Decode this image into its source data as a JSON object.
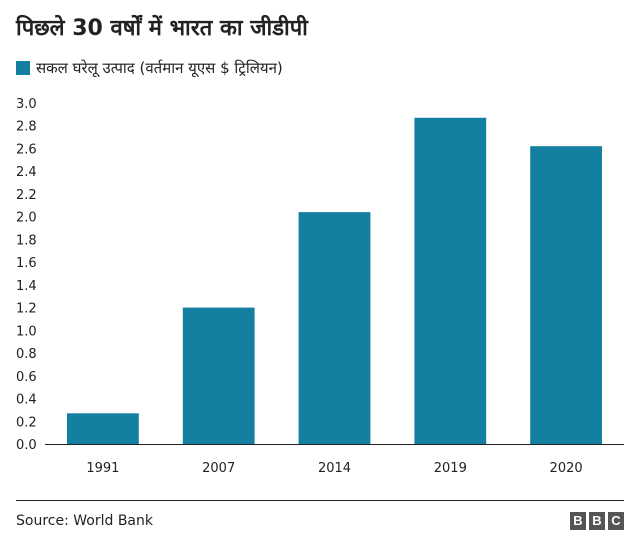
{
  "chart_data": {
    "type": "bar",
    "title": "पिछले 30 वर्षों में भारत का जीडीपी",
    "categories": [
      "1991",
      "2007",
      "2014",
      "2019",
      "2020"
    ],
    "series": [
      {
        "name": "सकल घरेलू उत्पाद (वर्तमान यूएस $ ट्रिलियन)",
        "values": [
          0.27,
          1.2,
          2.04,
          2.87,
          2.62
        ]
      }
    ],
    "y_ticks": [
      "0.0",
      "0.2",
      "0.4",
      "0.6",
      "0.8",
      "1.0",
      "1.2",
      "1.4",
      "1.6",
      "1.8",
      "2.0",
      "2.2",
      "2.4",
      "2.6",
      "2.8",
      "3.0"
    ],
    "ylim": [
      0,
      3.0
    ],
    "grid": false,
    "legend_position": "top-left",
    "bar_color": "#1380A1"
  },
  "footer": {
    "source": "Source:  World Bank",
    "logo_letters": [
      "B",
      "B",
      "C"
    ]
  }
}
